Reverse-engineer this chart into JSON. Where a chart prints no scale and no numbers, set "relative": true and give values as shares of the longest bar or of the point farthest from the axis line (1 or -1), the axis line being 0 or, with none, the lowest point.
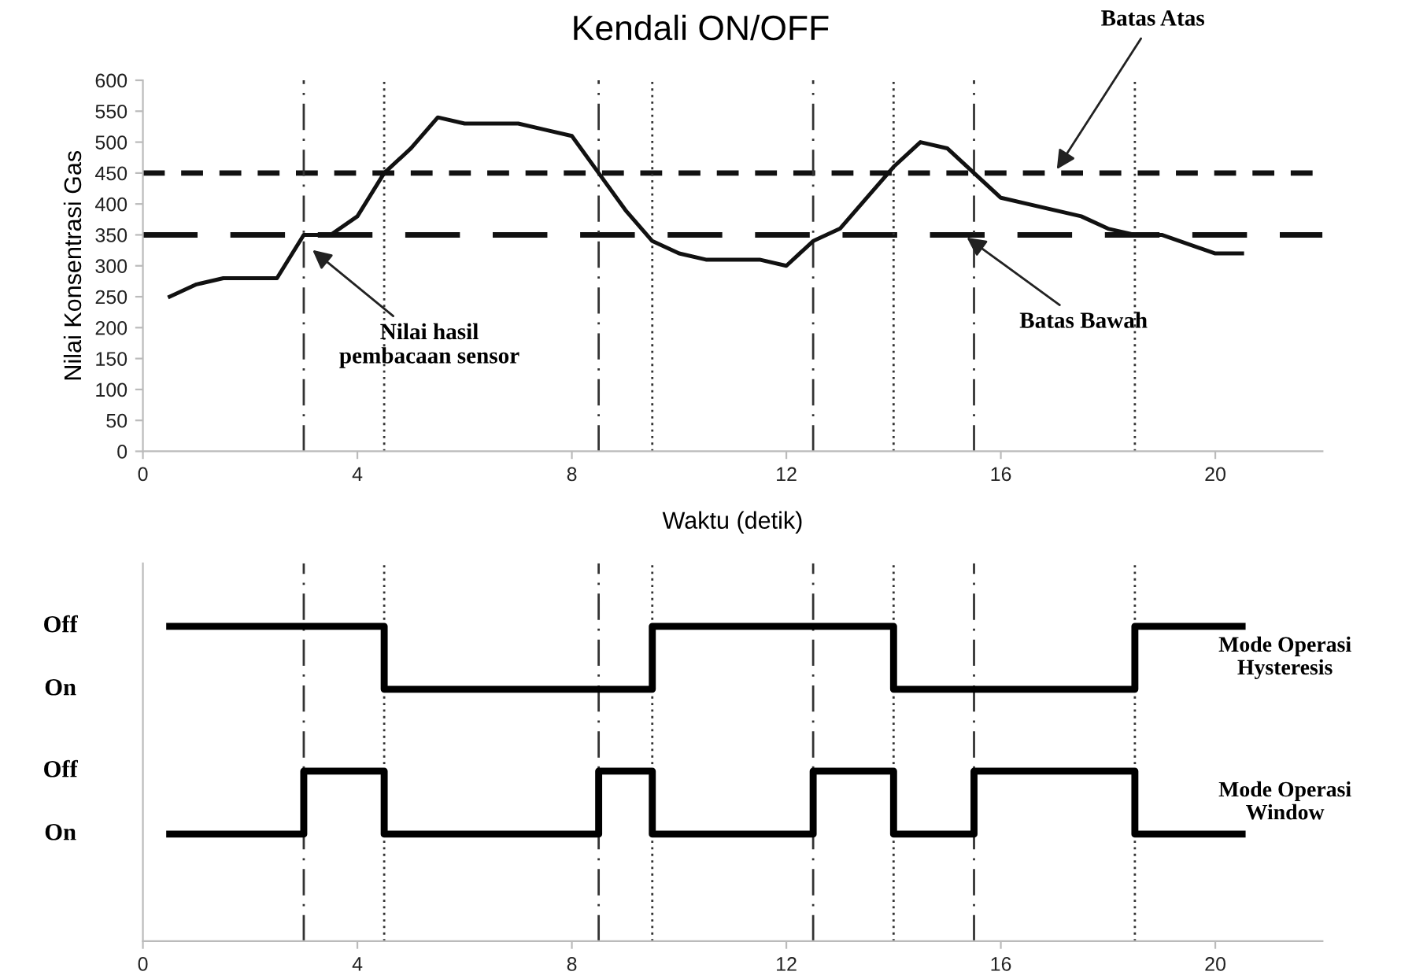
{
  "chart_data": [
    {
      "type": "line",
      "title": "Kendali ON/OFF",
      "xlabel": "Waktu (detik)",
      "ylabel": "Nilai Konsentrasi Gas",
      "xlim": [
        0,
        22
      ],
      "xticks": [
        0,
        4,
        8,
        12,
        16,
        20
      ],
      "ylim": [
        0,
        600
      ],
      "yticks": [
        0,
        50,
        100,
        150,
        200,
        250,
        300,
        350,
        400,
        450,
        500,
        550,
        600
      ],
      "series": [
        {
          "color": "#111111",
          "x": [
            0.5,
            1,
            1.5,
            2,
            2.5,
            3,
            3.5,
            4,
            4.5,
            5,
            5.5,
            6,
            7,
            7.5,
            8,
            8.5,
            9,
            9.5,
            10,
            10.5,
            11.5,
            12,
            12.5,
            13,
            14,
            14.5,
            15,
            15.5,
            16,
            17.5,
            18,
            18.5,
            19,
            20,
            20.5
          ],
          "values": [
            250,
            270,
            280,
            280,
            280,
            350,
            350,
            380,
            450,
            490,
            540,
            530,
            530,
            520,
            510,
            450,
            390,
            340,
            320,
            310,
            310,
            300,
            340,
            360,
            460,
            500,
            490,
            450,
            410,
            380,
            360,
            350,
            350,
            320,
            320
          ]
        }
      ],
      "ref_lines": [
        {
          "axis": "y",
          "value": 450,
          "color": "#111111",
          "line_style": "dashed"
        },
        {
          "axis": "y",
          "value": 350,
          "color": "#111111",
          "line_style": "longdash"
        },
        {
          "axis": "x",
          "value": 3,
          "color": "#333333",
          "line_style": "dashdot"
        },
        {
          "axis": "x",
          "value": 4.5,
          "color": "#333333",
          "line_style": "dotted"
        },
        {
          "axis": "x",
          "value": 8.5,
          "color": "#333333",
          "line_style": "dashdot"
        },
        {
          "axis": "x",
          "value": 9.5,
          "color": "#333333",
          "line_style": "dotted"
        },
        {
          "axis": "x",
          "value": 12.5,
          "color": "#333333",
          "line_style": "dashdot"
        },
        {
          "axis": "x",
          "value": 14,
          "color": "#333333",
          "line_style": "dotted"
        },
        {
          "axis": "x",
          "value": 15.5,
          "color": "#333333",
          "line_style": "dashdot"
        },
        {
          "axis": "x",
          "value": 18.5,
          "color": "#333333",
          "line_style": "dotted"
        }
      ],
      "annotations": [
        {
          "text": "Nilai hasil pembacaan sensor",
          "x": 3.1,
          "y": 330
        },
        {
          "text": "Batas Atas",
          "x": 17,
          "y": 450
        },
        {
          "text": "Batas Bawah",
          "x": 15.3,
          "y": 350
        }
      ],
      "grid": false,
      "legend": false
    },
    {
      "type": "step",
      "xlim": [
        0,
        22
      ],
      "xticks": [
        0,
        4,
        8,
        12,
        16,
        20
      ],
      "relative": true,
      "annotations": [
        "Off",
        "On",
        "Off",
        "On"
      ],
      "series": [
        {
          "name": "Mode Operasi Hysteresis",
          "color": "#000000",
          "x": [
            0.5,
            4.5,
            9.5,
            14,
            18.5,
            20.5
          ],
          "values": [
            1,
            0.8,
            1,
            0.8,
            1,
            1
          ]
        },
        {
          "name": "Mode Operasi Window",
          "color": "#000000",
          "x": [
            0.5,
            3,
            4.5,
            8.5,
            9.5,
            12.5,
            14,
            15.5,
            18.5,
            20.5
          ],
          "values": [
            0.34,
            0.54,
            0.34,
            0.54,
            0.34,
            0.54,
            0.34,
            0.54,
            0.34,
            0.34
          ]
        }
      ],
      "ref_lines": [
        {
          "axis": "x",
          "value": 3,
          "color": "#333333",
          "line_style": "dashdot"
        },
        {
          "axis": "x",
          "value": 4.5,
          "color": "#333333",
          "line_style": "dotted"
        },
        {
          "axis": "x",
          "value": 8.5,
          "color": "#333333",
          "line_style": "dashdot"
        },
        {
          "axis": "x",
          "value": 9.5,
          "color": "#333333",
          "line_style": "dotted"
        },
        {
          "axis": "x",
          "value": 12.5,
          "color": "#333333",
          "line_style": "dashdot"
        },
        {
          "axis": "x",
          "value": 14,
          "color": "#333333",
          "line_style": "dotted"
        },
        {
          "axis": "x",
          "value": 15.5,
          "color": "#333333",
          "line_style": "dashdot"
        },
        {
          "axis": "x",
          "value": 18.5,
          "color": "#333333",
          "line_style": "dotted"
        }
      ],
      "grid": false,
      "legend": false
    }
  ]
}
